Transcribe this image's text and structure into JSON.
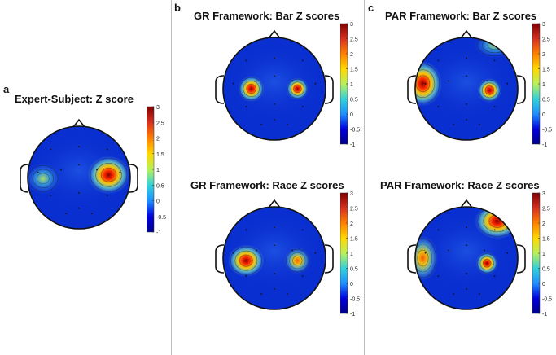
{
  "panels": [
    {
      "letter": "a",
      "title": "Expert-Subject: Z score"
    },
    {
      "letter": "b",
      "title": "GR Framework: Bar Z scores"
    },
    {
      "letter": "",
      "title": "GR Framework: Race Z scores"
    },
    {
      "letter": "c",
      "title": "PAR Framework: Bar Z scores"
    },
    {
      "letter": "",
      "title": "PAR Framework: Race Z scores"
    }
  ],
  "colorbar": {
    "ticks": [
      "3",
      "2.5",
      "2",
      "1.5",
      "1",
      "0.5",
      "0",
      "-0.5",
      "-1"
    ],
    "gradient": [
      "#7f0000",
      "#d7301f",
      "#ff7f00",
      "#ffd700",
      "#b8f05a",
      "#34d1d9",
      "#1e90ff",
      "#0000e0",
      "#00008b"
    ]
  }
}
